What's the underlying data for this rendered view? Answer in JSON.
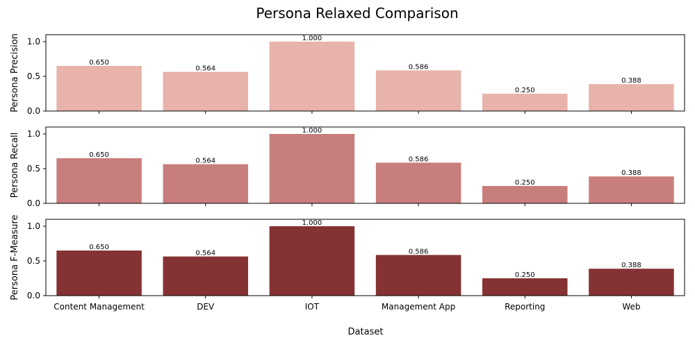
{
  "chart_data": {
    "type": "bar",
    "title": "Persona Relaxed Comparison",
    "xlabel": "Dataset",
    "categories": [
      "Content Management",
      "DEV",
      "IOT",
      "Management App",
      "Reporting",
      "Web"
    ],
    "ylim": [
      0,
      1.1
    ],
    "yticks": [
      "0.0",
      "0.5",
      "1.0"
    ],
    "panels": [
      {
        "ylabel": "Persona Precision",
        "color": "#e8b3aa",
        "values": [
          0.65,
          0.564,
          1.0,
          0.586,
          0.25,
          0.388
        ],
        "labels": [
          "0.650",
          "0.564",
          "1.000",
          "0.586",
          "0.250",
          "0.388"
        ]
      },
      {
        "ylabel": "Persona Recall",
        "color": "#c87e7d",
        "values": [
          0.65,
          0.564,
          1.0,
          0.586,
          0.25,
          0.388
        ],
        "labels": [
          "0.650",
          "0.564",
          "1.000",
          "0.586",
          "0.250",
          "0.388"
        ]
      },
      {
        "ylabel": "Persona F-Measure",
        "color": "#853234",
        "values": [
          0.65,
          0.564,
          1.0,
          0.586,
          0.25,
          0.388
        ],
        "labels": [
          "0.650",
          "0.564",
          "1.000",
          "0.586",
          "0.250",
          "0.388"
        ]
      }
    ],
    "grid": false,
    "legend": "none"
  }
}
